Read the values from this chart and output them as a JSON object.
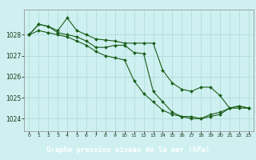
{
  "bg_color": "#cff0f0",
  "grid_color": "#aad8d8",
  "line_color": "#1a5e1a",
  "footer_bg": "#2a6e2a",
  "footer_text": "Graphe pression niveau de la mer (hPa)",
  "footer_text_color": "#ffffff",
  "xlim": [
    -0.5,
    23.5
  ],
  "ylim": [
    1023.4,
    1029.2
  ],
  "yticks": [
    1024,
    1025,
    1026,
    1027,
    1028
  ],
  "xticks": [
    0,
    1,
    2,
    3,
    4,
    5,
    6,
    7,
    8,
    9,
    10,
    11,
    12,
    13,
    14,
    15,
    16,
    17,
    18,
    19,
    20,
    21,
    22,
    23
  ],
  "xtick_labels": [
    "0",
    "1",
    "2",
    "3",
    "4",
    "5",
    "6",
    "7",
    "8",
    "9",
    "10",
    "11",
    "12",
    "13",
    "14",
    "15",
    "16",
    "17",
    "18",
    "19",
    "20",
    "21",
    "22",
    "23"
  ],
  "line1_x": [
    0,
    1,
    2,
    3,
    4,
    5,
    6,
    7,
    8,
    9,
    10,
    11,
    12,
    13,
    14,
    15,
    16,
    17,
    18,
    19,
    20,
    21,
    22,
    23
  ],
  "line1_y": [
    1028.0,
    1028.5,
    1028.4,
    1028.2,
    1028.8,
    1028.2,
    1028.0,
    1027.8,
    1027.75,
    1027.7,
    1027.6,
    1027.6,
    1027.6,
    1027.6,
    1026.3,
    1025.7,
    1025.4,
    1025.3,
    1025.5,
    1025.5,
    1025.1,
    1024.5,
    1024.5,
    1024.5
  ],
  "line2_x": [
    0,
    1,
    2,
    3,
    4,
    5,
    6,
    7,
    8,
    9,
    10,
    11,
    12,
    13,
    14,
    15,
    16,
    17,
    18,
    19,
    20,
    21,
    22,
    23
  ],
  "line2_y": [
    1028.0,
    1028.5,
    1028.4,
    1028.1,
    1028.0,
    1027.9,
    1027.7,
    1027.4,
    1027.4,
    1027.5,
    1027.5,
    1027.15,
    1027.1,
    1025.3,
    1024.8,
    1024.3,
    1024.1,
    1024.1,
    1024.0,
    1024.1,
    1024.2,
    1024.5,
    1024.6,
    1024.5
  ],
  "line3_x": [
    0,
    1,
    2,
    3,
    4,
    5,
    6,
    7,
    8,
    9,
    10,
    11,
    12,
    13,
    14,
    15,
    16,
    17,
    18,
    19,
    20,
    21,
    22,
    23
  ],
  "line3_y": [
    1028.0,
    1028.2,
    1028.1,
    1028.0,
    1027.9,
    1027.7,
    1027.5,
    1027.2,
    1027.0,
    1026.9,
    1026.8,
    1025.8,
    1025.2,
    1024.8,
    1024.4,
    1024.2,
    1024.1,
    1024.0,
    1024.0,
    1024.2,
    1024.3,
    1024.5,
    1024.6,
    1024.5
  ]
}
